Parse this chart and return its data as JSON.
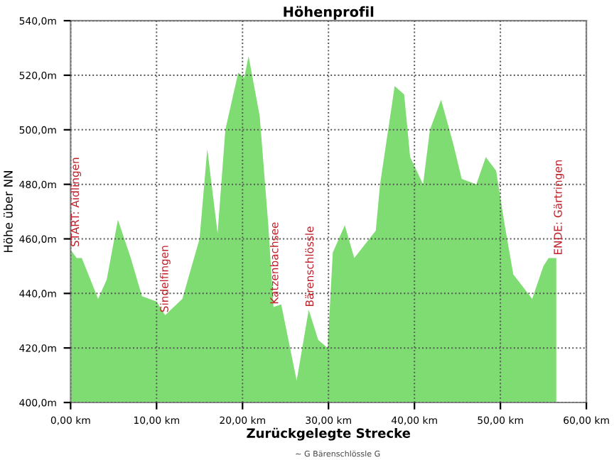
{
  "chart_data": {
    "type": "area",
    "title": "Höhenprofil",
    "xlabel": "Zurückgelegte Strecke",
    "ylabel": "Höhe über NN",
    "x": [
      0,
      0.7,
      1.3,
      3.2,
      4.2,
      5.5,
      7,
      8.3,
      10,
      11,
      13,
      15,
      15.9,
      17.1,
      18,
      19.5,
      20.2,
      20.7,
      22,
      23,
      23.6,
      24.5,
      26.3,
      27.7,
      28.8,
      29.9,
      30.5,
      31.9,
      33,
      34,
      35.5,
      36,
      37.7,
      38.8,
      39.5,
      41,
      41.8,
      43.1,
      44.5,
      45.5,
      47.2,
      48.3,
      49.5,
      50.5,
      51.5,
      53.7,
      55,
      55.6,
      56.5
    ],
    "series": [
      {
        "color": "#7fdc72",
        "values": [
          456,
          453,
          453,
          438,
          445,
          467,
          453,
          439,
          437,
          432,
          438,
          460,
          493,
          462,
          500,
          521,
          519,
          527,
          505,
          465,
          435,
          436,
          408,
          434,
          423,
          420,
          455,
          465,
          453,
          457,
          463,
          480,
          516,
          513,
          490,
          480,
          500,
          511,
          495,
          482,
          480,
          490,
          485,
          465,
          447,
          438,
          450,
          453,
          453
        ]
      }
    ],
    "xlim": [
      0,
      60
    ],
    "ylim": [
      400,
      540
    ],
    "xticks": [
      {
        "value": 0,
        "label": "0,00 km"
      },
      {
        "value": 10,
        "label": "10,00 km"
      },
      {
        "value": 20,
        "label": "20,00 km"
      },
      {
        "value": 30,
        "label": "30,00 km"
      },
      {
        "value": 40,
        "label": "40,00 km"
      },
      {
        "value": 50,
        "label": "50,00 km"
      },
      {
        "value": 60,
        "label": "60,00 km"
      }
    ],
    "yticks": [
      {
        "value": 400,
        "label": "400,0m"
      },
      {
        "value": 420,
        "label": "420,0m"
      },
      {
        "value": 440,
        "label": "440,0m"
      },
      {
        "value": 460,
        "label": "460,0m"
      },
      {
        "value": 480,
        "label": "480,0m"
      },
      {
        "value": 500,
        "label": "500,0m"
      },
      {
        "value": 520,
        "label": "520,0m"
      },
      {
        "value": 540,
        "label": "540,0m"
      }
    ],
    "grid": true,
    "legend": false,
    "annotations": [
      {
        "text": "START: Aidlingen",
        "x": 0,
        "y": 457
      },
      {
        "text": "Sindelfingen",
        "x": 11,
        "y": 433
      },
      {
        "text": "Katzenbachsee",
        "x": 23.8,
        "y": 436
      },
      {
        "text": "Bärenschlössle",
        "x": 27.9,
        "y": 435
      },
      {
        "text": "ENDE: Gärtringen",
        "x": 56.8,
        "y": 454
      },
      "~ G Bärenschlössle G"
    ]
  }
}
